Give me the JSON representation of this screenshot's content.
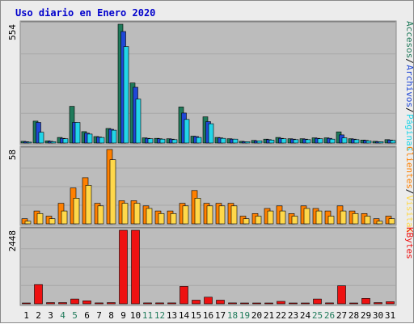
{
  "colors": {
    "visitas": "#1f7a5a",
    "paginas": "#22d5e8",
    "archivos": "#1f47d6",
    "accesos": "#1f7a5a",
    "clientes": "#ff8000",
    "visits": "#ffd84a",
    "kbytes": "#ee1111",
    "weekend_day": "#1f7a5a",
    "weekday_day": "#000000",
    "panel_bg": "#bcbcbc"
  },
  "chart_data": {
    "type": "bar",
    "title": "Uso diario en Enero 2020",
    "categories": [
      "1",
      "2",
      "3",
      "4",
      "5",
      "6",
      "7",
      "8",
      "9",
      "10",
      "11",
      "12",
      "13",
      "14",
      "15",
      "16",
      "17",
      "18",
      "19",
      "20",
      "21",
      "22",
      "23",
      "24",
      "25",
      "26",
      "27",
      "28",
      "29",
      "30",
      "31"
    ],
    "weekend_days": [
      "4",
      "5",
      "11",
      "12",
      "18",
      "19",
      "25",
      "26"
    ],
    "panels": [
      {
        "id": "top",
        "max_label": "554",
        "ymax": 554,
        "right_labels": [
          "Accesos",
          "Archivos",
          "Páginas"
        ],
        "series": [
          {
            "name": "Accesos",
            "color": "#1f7a5a",
            "values": [
              8,
              102,
              10,
              26,
              171,
              53,
              30,
              68,
              554,
              280,
              24,
              22,
              20,
              168,
              32,
              122,
              26,
              20,
              8,
              12,
              18,
              26,
              20,
              20,
              24,
              24,
              52,
              20,
              14,
              8,
              16
            ]
          },
          {
            "name": "Archivos",
            "color": "#1f47d6",
            "values": [
              6,
              96,
              8,
              22,
              96,
              46,
              28,
              64,
              520,
              260,
              22,
              20,
              18,
              140,
              30,
              100,
              24,
              18,
              6,
              10,
              16,
              22,
              18,
              18,
              22,
              22,
              38,
              18,
              12,
              6,
              14
            ]
          },
          {
            "name": "Páginas",
            "color": "#22d5e8",
            "values": [
              4,
              50,
              6,
              20,
              96,
              42,
              26,
              60,
              450,
              205,
              20,
              18,
              16,
              110,
              26,
              90,
              22,
              18,
              6,
              10,
              14,
              20,
              16,
              16,
              20,
              18,
              24,
              16,
              10,
              6,
              12
            ]
          }
        ]
      },
      {
        "id": "middle",
        "max_label": "58",
        "ymax": 58,
        "right_labels": [
          "Clientes",
          "Visitas"
        ],
        "series": [
          {
            "name": "Clientes",
            "color": "#ff8000",
            "values": [
              4,
              10,
              6,
              16,
              28,
              36,
              16,
              58,
              18,
              18,
              14,
              10,
              10,
              16,
              26,
              16,
              16,
              16,
              6,
              8,
              12,
              14,
              8,
              14,
              12,
              10,
              14,
              10,
              8,
              4,
              6
            ]
          },
          {
            "name": "Visitas",
            "color": "#ffd84a",
            "values": [
              2,
              8,
              4,
              10,
              20,
              30,
              14,
              50,
              16,
              16,
              12,
              8,
              8,
              14,
              20,
              14,
              14,
              14,
              4,
              6,
              10,
              10,
              6,
              12,
              10,
              6,
              10,
              8,
              6,
              2,
              4
            ]
          }
        ]
      },
      {
        "id": "bottom",
        "max_label": "2448",
        "ymax": 2448,
        "right_labels": [
          "KBytes"
        ],
        "series": [
          {
            "name": "KBytes",
            "color": "#ee1111",
            "values": [
              20,
              640,
              40,
              40,
              160,
              100,
              30,
              40,
              2448,
              2448,
              30,
              30,
              30,
              580,
              120,
              220,
              120,
              30,
              10,
              20,
              20,
              80,
              20,
              20,
              160,
              30,
              600,
              20,
              180,
              40,
              70
            ]
          }
        ]
      }
    ]
  }
}
